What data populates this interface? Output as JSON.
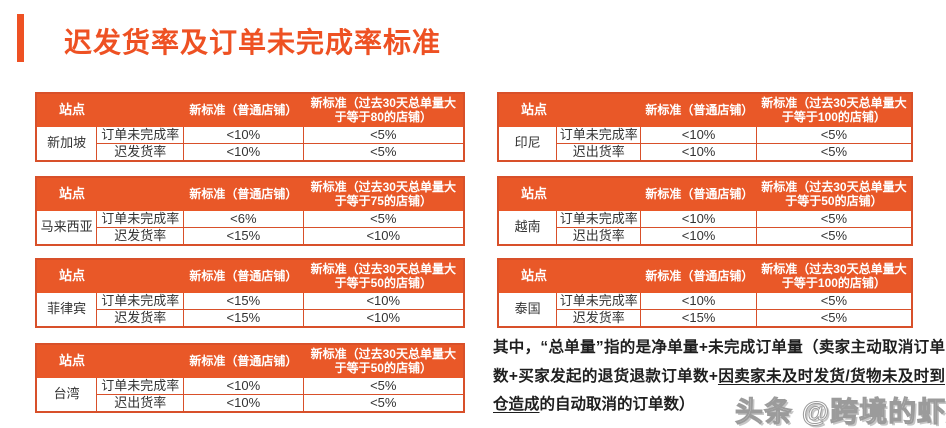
{
  "page": {
    "title": "迟发货率及订单未完成率标准",
    "watermark": "头条 @跨境的虾皮",
    "accent_color": "#EE5123",
    "table_header_color": "#E95828",
    "table_border_color": "#D8502A"
  },
  "tables": [
    {
      "site": "新加坡",
      "headers": {
        "site": "站点",
        "normal": "新标准（普通店铺）",
        "volume": "新标准（过去30天总单量大于等于80的店铺）"
      },
      "rows": [
        {
          "metric": "订单未完成率",
          "normal": "<10%",
          "volume": "<5%"
        },
        {
          "metric": "迟发货率",
          "normal": "<10%",
          "volume": "<5%"
        }
      ]
    },
    {
      "site": "马来西亚",
      "headers": {
        "site": "站点",
        "normal": "新标准（普通店铺）",
        "volume": "新标准（过去30天总单量大于等于75的店铺）"
      },
      "rows": [
        {
          "metric": "订单未完成率",
          "normal": "<6%",
          "volume": "<5%"
        },
        {
          "metric": "迟发货率",
          "normal": "<15%",
          "volume": "<10%"
        }
      ]
    },
    {
      "site": "菲律宾",
      "headers": {
        "site": "站点",
        "normal": "新标准（普通店铺）",
        "volume": "新标准（过去30天总单量大于等于50的店铺）"
      },
      "rows": [
        {
          "metric": "订单未完成率",
          "normal": "<15%",
          "volume": "<10%"
        },
        {
          "metric": "迟发货率",
          "normal": "<15%",
          "volume": "<10%"
        }
      ]
    },
    {
      "site": "台湾",
      "headers": {
        "site": "站点",
        "normal": "新标准（普通店铺）",
        "volume": "新标准（过去30天总单量大于等于50的店铺）"
      },
      "rows": [
        {
          "metric": "订单未完成率",
          "normal": "<10%",
          "volume": "<5%"
        },
        {
          "metric": "迟出货率",
          "normal": "<10%",
          "volume": "<5%"
        }
      ]
    },
    {
      "site": "印尼",
      "headers": {
        "site": "站点",
        "normal": "新标准（普通店铺）",
        "volume": "新标准（过去30天总单量大于等于100的店铺）"
      },
      "rows": [
        {
          "metric": "订单未完成率",
          "normal": "<10%",
          "volume": "<5%"
        },
        {
          "metric": "迟出货率",
          "normal": "<10%",
          "volume": "<5%"
        }
      ]
    },
    {
      "site": "越南",
      "headers": {
        "site": "站点",
        "normal": "新标准（普通店铺）",
        "volume": "新标准（过去30天总单量大于等于50的店铺）"
      },
      "rows": [
        {
          "metric": "订单未完成率",
          "normal": "<10%",
          "volume": "<5%"
        },
        {
          "metric": "迟出货率",
          "normal": "<10%",
          "volume": "<5%"
        }
      ]
    },
    {
      "site": "泰国",
      "headers": {
        "site": "站点",
        "normal": "新标准（普通店铺）",
        "volume": "新标准（过去30天总单量大于等于100的店铺）"
      },
      "rows": [
        {
          "metric": "订单未完成率",
          "normal": "<10%",
          "volume": "<5%"
        },
        {
          "metric": "迟发货率",
          "normal": "<15%",
          "volume": "<5%"
        }
      ]
    }
  ],
  "note": {
    "part1": "其中，“总单量”指的是净单量+未完成订单量（卖家主动取消订单数+买家发起的退货退款订单数+",
    "underlined": "因卖家未及时发货/货物未及时到仓造成",
    "part2": "的自动取消的订单数）"
  }
}
